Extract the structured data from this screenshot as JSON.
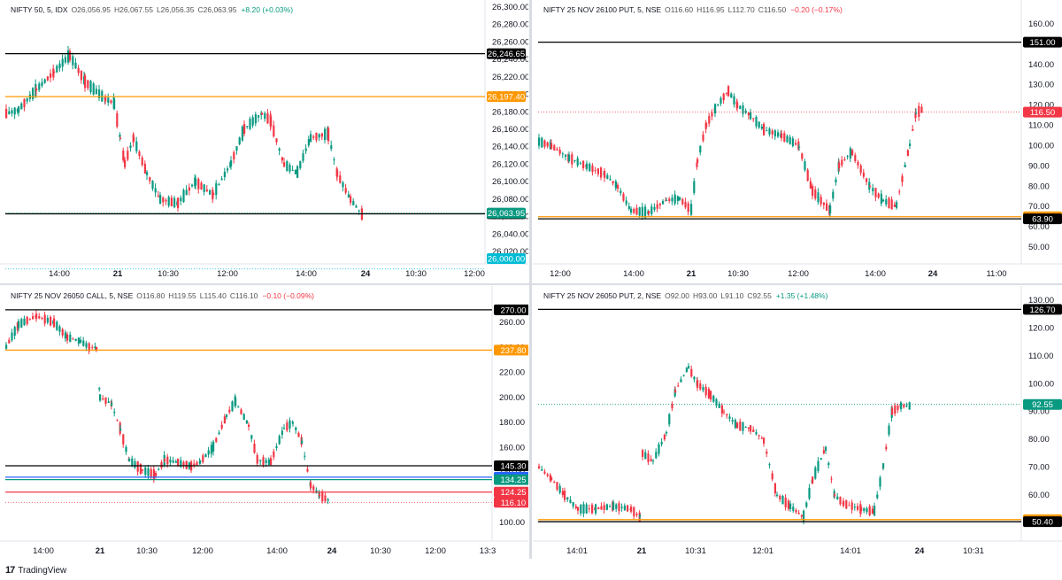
{
  "footer": {
    "brand": "TradingView"
  },
  "panels": [
    {
      "header": {
        "title": "NIFTY 50, 5, IDX",
        "o": "O26,056.95",
        "h": "H26,067.55",
        "l": "L26,056.35",
        "c": "C26,063.95",
        "chg": "+8.20 (+0.03%)",
        "dir": "pos"
      },
      "yticks": [
        "26,300.00",
        "26,280.00",
        "26,260.00",
        "26,240.00",
        "26,220.00",
        "26,200.00",
        "26,180.00",
        "26,160.00",
        "26,140.00",
        "26,120.00",
        "26,100.00",
        "26,080.00",
        "26,060.00",
        "26,040.00",
        "26,020.00"
      ],
      "xticks": [
        "14:00",
        "21",
        "10:30",
        "12:00",
        "14:00",
        "24",
        "10:30",
        "12:00"
      ],
      "hlines": [
        {
          "price": "26,246.65",
          "color": "#000000",
          "badge_bg": "#000000"
        },
        {
          "price": "26,197.40",
          "color": "#ff9800",
          "badge_bg": "#ff9800"
        },
        {
          "price": "26,063.20",
          "color": "#000000",
          "badge_bg": "#000000"
        }
      ],
      "badges": [
        {
          "text": "26,063.95",
          "bg": "#089981"
        },
        {
          "text": "26,000.00",
          "bg": "#00bcd4"
        }
      ]
    },
    {
      "header": {
        "title": "NIFTY 25 NOV 26100 PUT, 5, NSE",
        "o": "O116.60",
        "h": "H116.95",
        "l": "L112.70",
        "c": "C116.50",
        "chg": "−0.20 (−0.17%)",
        "dir": "neg"
      },
      "yticks": [
        "160.00",
        "150.00",
        "140.00",
        "130.00",
        "120.00",
        "110.00",
        "100.00",
        "90.00",
        "80.00",
        "70.00",
        "60.00",
        "50.00"
      ],
      "xticks": [
        "12:00",
        "14:00",
        "21",
        "10:30",
        "12:00",
        "14:00",
        "24",
        "11:00"
      ],
      "hlines": [
        {
          "price": "151.00",
          "color": "#000000",
          "badge_bg": "#000000"
        },
        {
          "price": "64.95",
          "color": "#ff9800",
          "badge_bg": "#ff9800"
        },
        {
          "price": "63.90",
          "color": "#000000",
          "badge_bg": "#000000"
        }
      ],
      "badges": [
        {
          "text": "116.50",
          "bg": "#f23645"
        }
      ]
    },
    {
      "header": {
        "title": "NIFTY 25 NOV 26050 CALL, 5, NSE",
        "o": "O116.80",
        "h": "H119.55",
        "l": "L115.40",
        "c": "C116.10",
        "chg": "−0.10 (−0.09%)",
        "dir": "neg"
      },
      "yticks": [
        "260.00",
        "240.00",
        "220.00",
        "200.00",
        "180.00",
        "160.00",
        "140.00",
        "120.00",
        "100.00"
      ],
      "xticks": [
        "14:00",
        "21",
        "10:30",
        "12:00",
        "14:00",
        "24",
        "10:30",
        "12:00",
        "13:3"
      ],
      "hlines": [
        {
          "price": "270.00",
          "color": "#000000",
          "badge_bg": "#000000"
        },
        {
          "price": "237.80",
          "color": "#ff9800",
          "badge_bg": "#ff9800"
        },
        {
          "price": "145.30",
          "color": "#000000",
          "badge_bg": "#000000"
        },
        {
          "price": "136.20",
          "color": "#2962ff",
          "badge_bg": "#2962ff"
        },
        {
          "price": "134.25",
          "color": "#089981",
          "badge_bg": "#089981"
        },
        {
          "price": "124.25",
          "color": "#f23645",
          "badge_bg": "#f23645"
        }
      ],
      "badges": [
        {
          "text": "116.10",
          "bg": "#f23645"
        }
      ]
    },
    {
      "header": {
        "title": "NIFTY 25 NOV 26050 PUT, 2, NSE",
        "o": "O92.00",
        "h": "H93.00",
        "l": "L91.10",
        "c": "C92.55",
        "chg": "+1.35 (+1.48%)",
        "dir": "pos"
      },
      "yticks": [
        "130.00",
        "120.00",
        "110.00",
        "100.00",
        "90.00",
        "80.00",
        "70.00",
        "60.00"
      ],
      "xticks": [
        "14:01",
        "21",
        "10:31",
        "12:01",
        "14:01",
        "24",
        "10:31"
      ],
      "hlines": [
        {
          "price": "126.70",
          "color": "#000000",
          "badge_bg": "#000000"
        },
        {
          "price": "51.15",
          "color": "#ff9800",
          "badge_bg": "#ff9800"
        },
        {
          "price": "50.40",
          "color": "#000000",
          "badge_bg": "#000000"
        }
      ],
      "badges": [
        {
          "text": "92.55",
          "bg": "#089981"
        }
      ]
    }
  ]
}
